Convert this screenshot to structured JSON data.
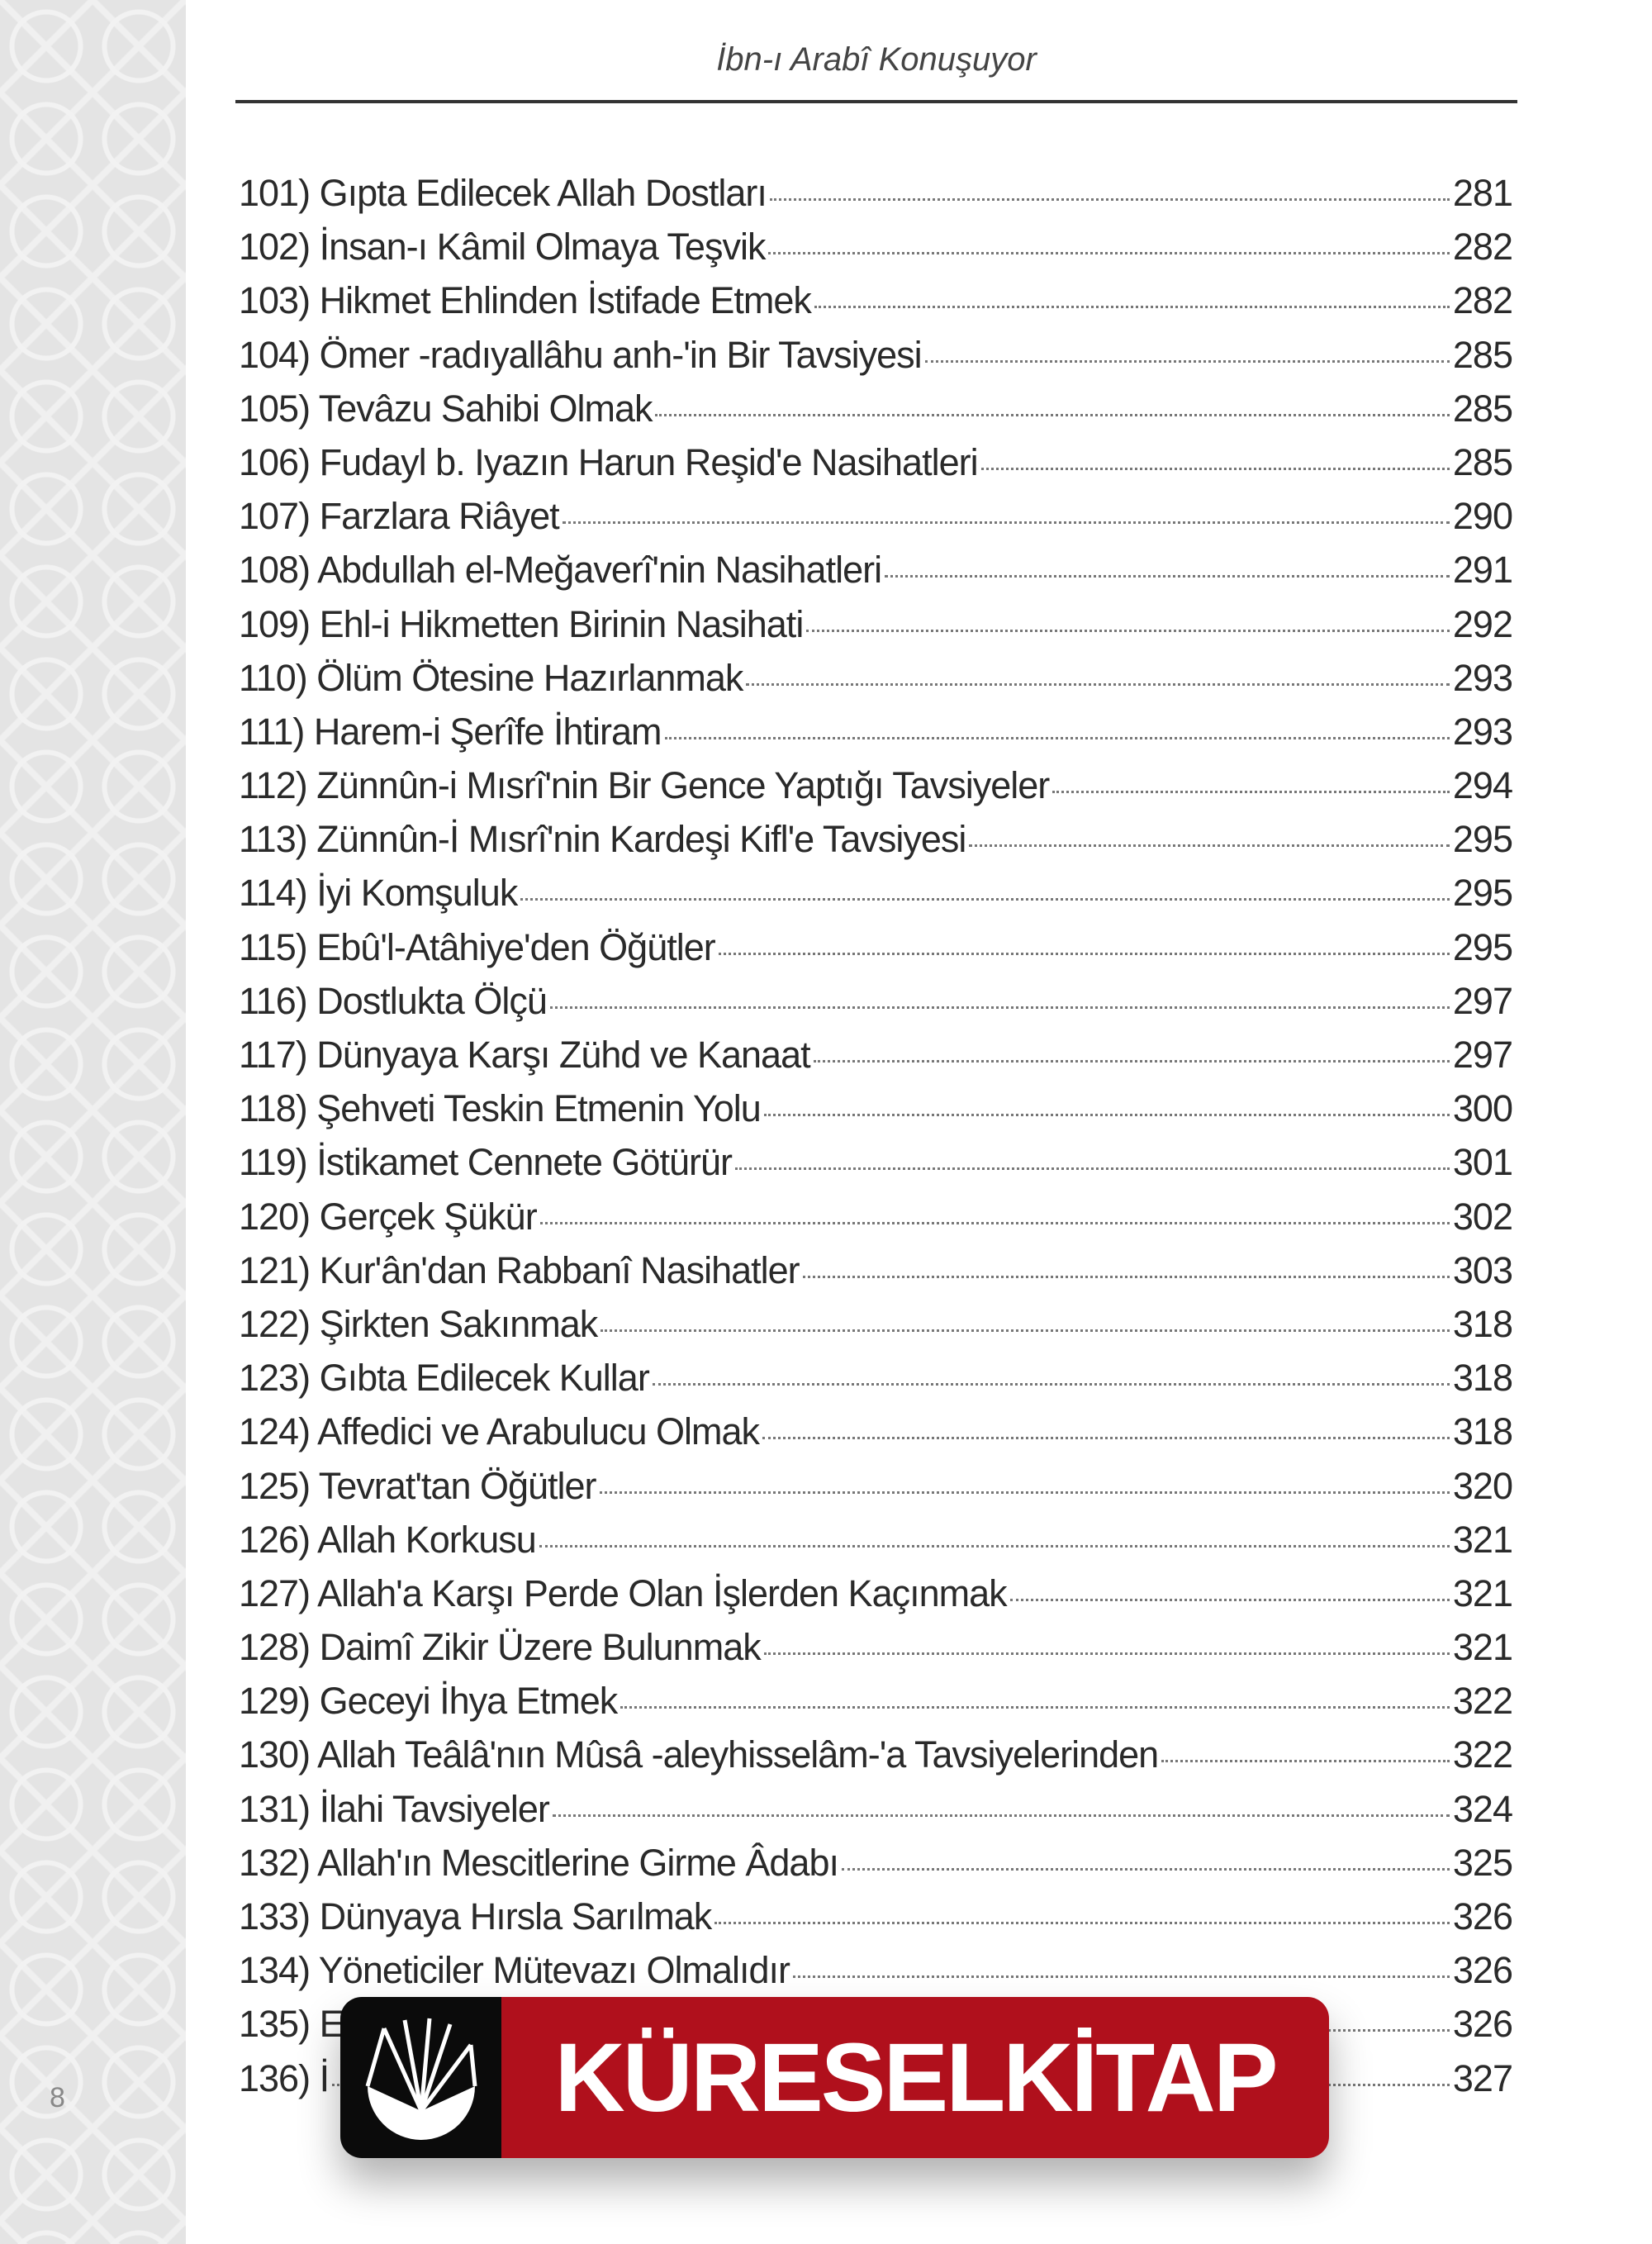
{
  "header": {
    "title": "İbn-ı Arabî Konuşuyor"
  },
  "page_number": "8",
  "toc": [
    {
      "num": "101)",
      "title": "Gıpta Edilecek Allah Dostları",
      "page": "281"
    },
    {
      "num": "102)",
      "title": " İnsan-ı Kâmil Olmaya Teşvik",
      "page": "282"
    },
    {
      "num": "103)",
      "title": "Hikmet Ehlinden İstifade Etmek",
      "page": "282"
    },
    {
      "num": "104)",
      "title": "Ömer -radıyallâhu anh-'in Bir Tavsiyesi",
      "page": "285"
    },
    {
      "num": "105)",
      "title": "Tevâzu Sahibi Olmak",
      "page": "285"
    },
    {
      "num": "106)",
      "title": "Fudayl b. Iyazın Harun Reşid'e Nasihatleri",
      "page": "285"
    },
    {
      "num": "107)",
      "title": "Farzlara Riâyet",
      "page": "290"
    },
    {
      "num": "108)",
      "title": "Abdullah el-Meğaverî'nin Nasihatleri",
      "page": "291"
    },
    {
      "num": "109)",
      "title": "Ehl-i Hikmetten Birinin Nasihati",
      "page": "292"
    },
    {
      "num": "110)",
      "title": "Ölüm Ötesine Hazırlanmak",
      "page": "293"
    },
    {
      "num": "111)",
      "title": "Harem-i Şerîfe İhtiram",
      "page": "293"
    },
    {
      "num": "112)",
      "title": "Zünnûn-i Mısrî'nin Bir Gence Yaptığı Tavsiyeler",
      "page": "294"
    },
    {
      "num": "113)",
      "title": "Zünnûn-İ Mısrî'nin Kardeşi Kifl'e Tavsiyesi",
      "page": "295"
    },
    {
      "num": "114)",
      "title": "İyi Komşuluk",
      "page": "295"
    },
    {
      "num": "115)",
      "title": "Ebû'l-Atâhiye'den Öğütler",
      "page": "295"
    },
    {
      "num": "116)",
      "title": "Dostlukta Ölçü",
      "page": "297"
    },
    {
      "num": "117)",
      "title": "Dünyaya Karşı Zühd ve Kanaat",
      "page": "297"
    },
    {
      "num": "118)",
      "title": "Şehveti Teskin Etmenin Yolu",
      "page": "300"
    },
    {
      "num": "119)",
      "title": "İstikamet Cennete Götürür",
      "page": "301"
    },
    {
      "num": "120)",
      "title": "Gerçek Şükür",
      "page": "302"
    },
    {
      "num": "121)",
      "title": "Kur'ân'dan Rabbanî Nasihatler",
      "page": "303"
    },
    {
      "num": "122)",
      "title": "Şirkten Sakınmak",
      "page": "318"
    },
    {
      "num": "123)",
      "title": "Gıbta Edilecek Kullar",
      "page": "318"
    },
    {
      "num": "124)",
      "title": "Affedici ve Arabulucu Olmak",
      "page": "318"
    },
    {
      "num": "125)",
      "title": "Tevrat'tan Öğütler",
      "page": "320"
    },
    {
      "num": "126)",
      "title": "Allah Korkusu",
      "page": "321"
    },
    {
      "num": "127)",
      "title": "Allah'a Karşı Perde Olan İşlerden Kaçınmak",
      "page": "321"
    },
    {
      "num": "128)",
      "title": "Daimî Zikir Üzere Bulunmak",
      "page": "321"
    },
    {
      "num": "129)",
      "title": "Geceyi İhya Etmek",
      "page": "322"
    },
    {
      "num": "130)",
      "title": "Allah Teâlâ'nın Mûsâ -aleyhisselâm-'a Tavsiyelerinden",
      "page": "322"
    },
    {
      "num": "131)",
      "title": "İlahi Tavsiyeler",
      "page": "324"
    },
    {
      "num": "132)",
      "title": "Allah'ın Mescitlerine Girme Âdabı",
      "page": "325"
    },
    {
      "num": "133)",
      "title": "Dünyaya Hırsla Sarılmak",
      "page": "326"
    },
    {
      "num": "134)",
      "title": "Yöneticiler Mütevazı Olmalıdır",
      "page": "326"
    },
    {
      "num": "135)",
      "title": "E",
      "page": "326"
    },
    {
      "num": "136)",
      "title": "İ",
      "page": "327"
    }
  ],
  "watermark": {
    "text": "KÜRESELKİTAP",
    "color": "#b0101c"
  }
}
